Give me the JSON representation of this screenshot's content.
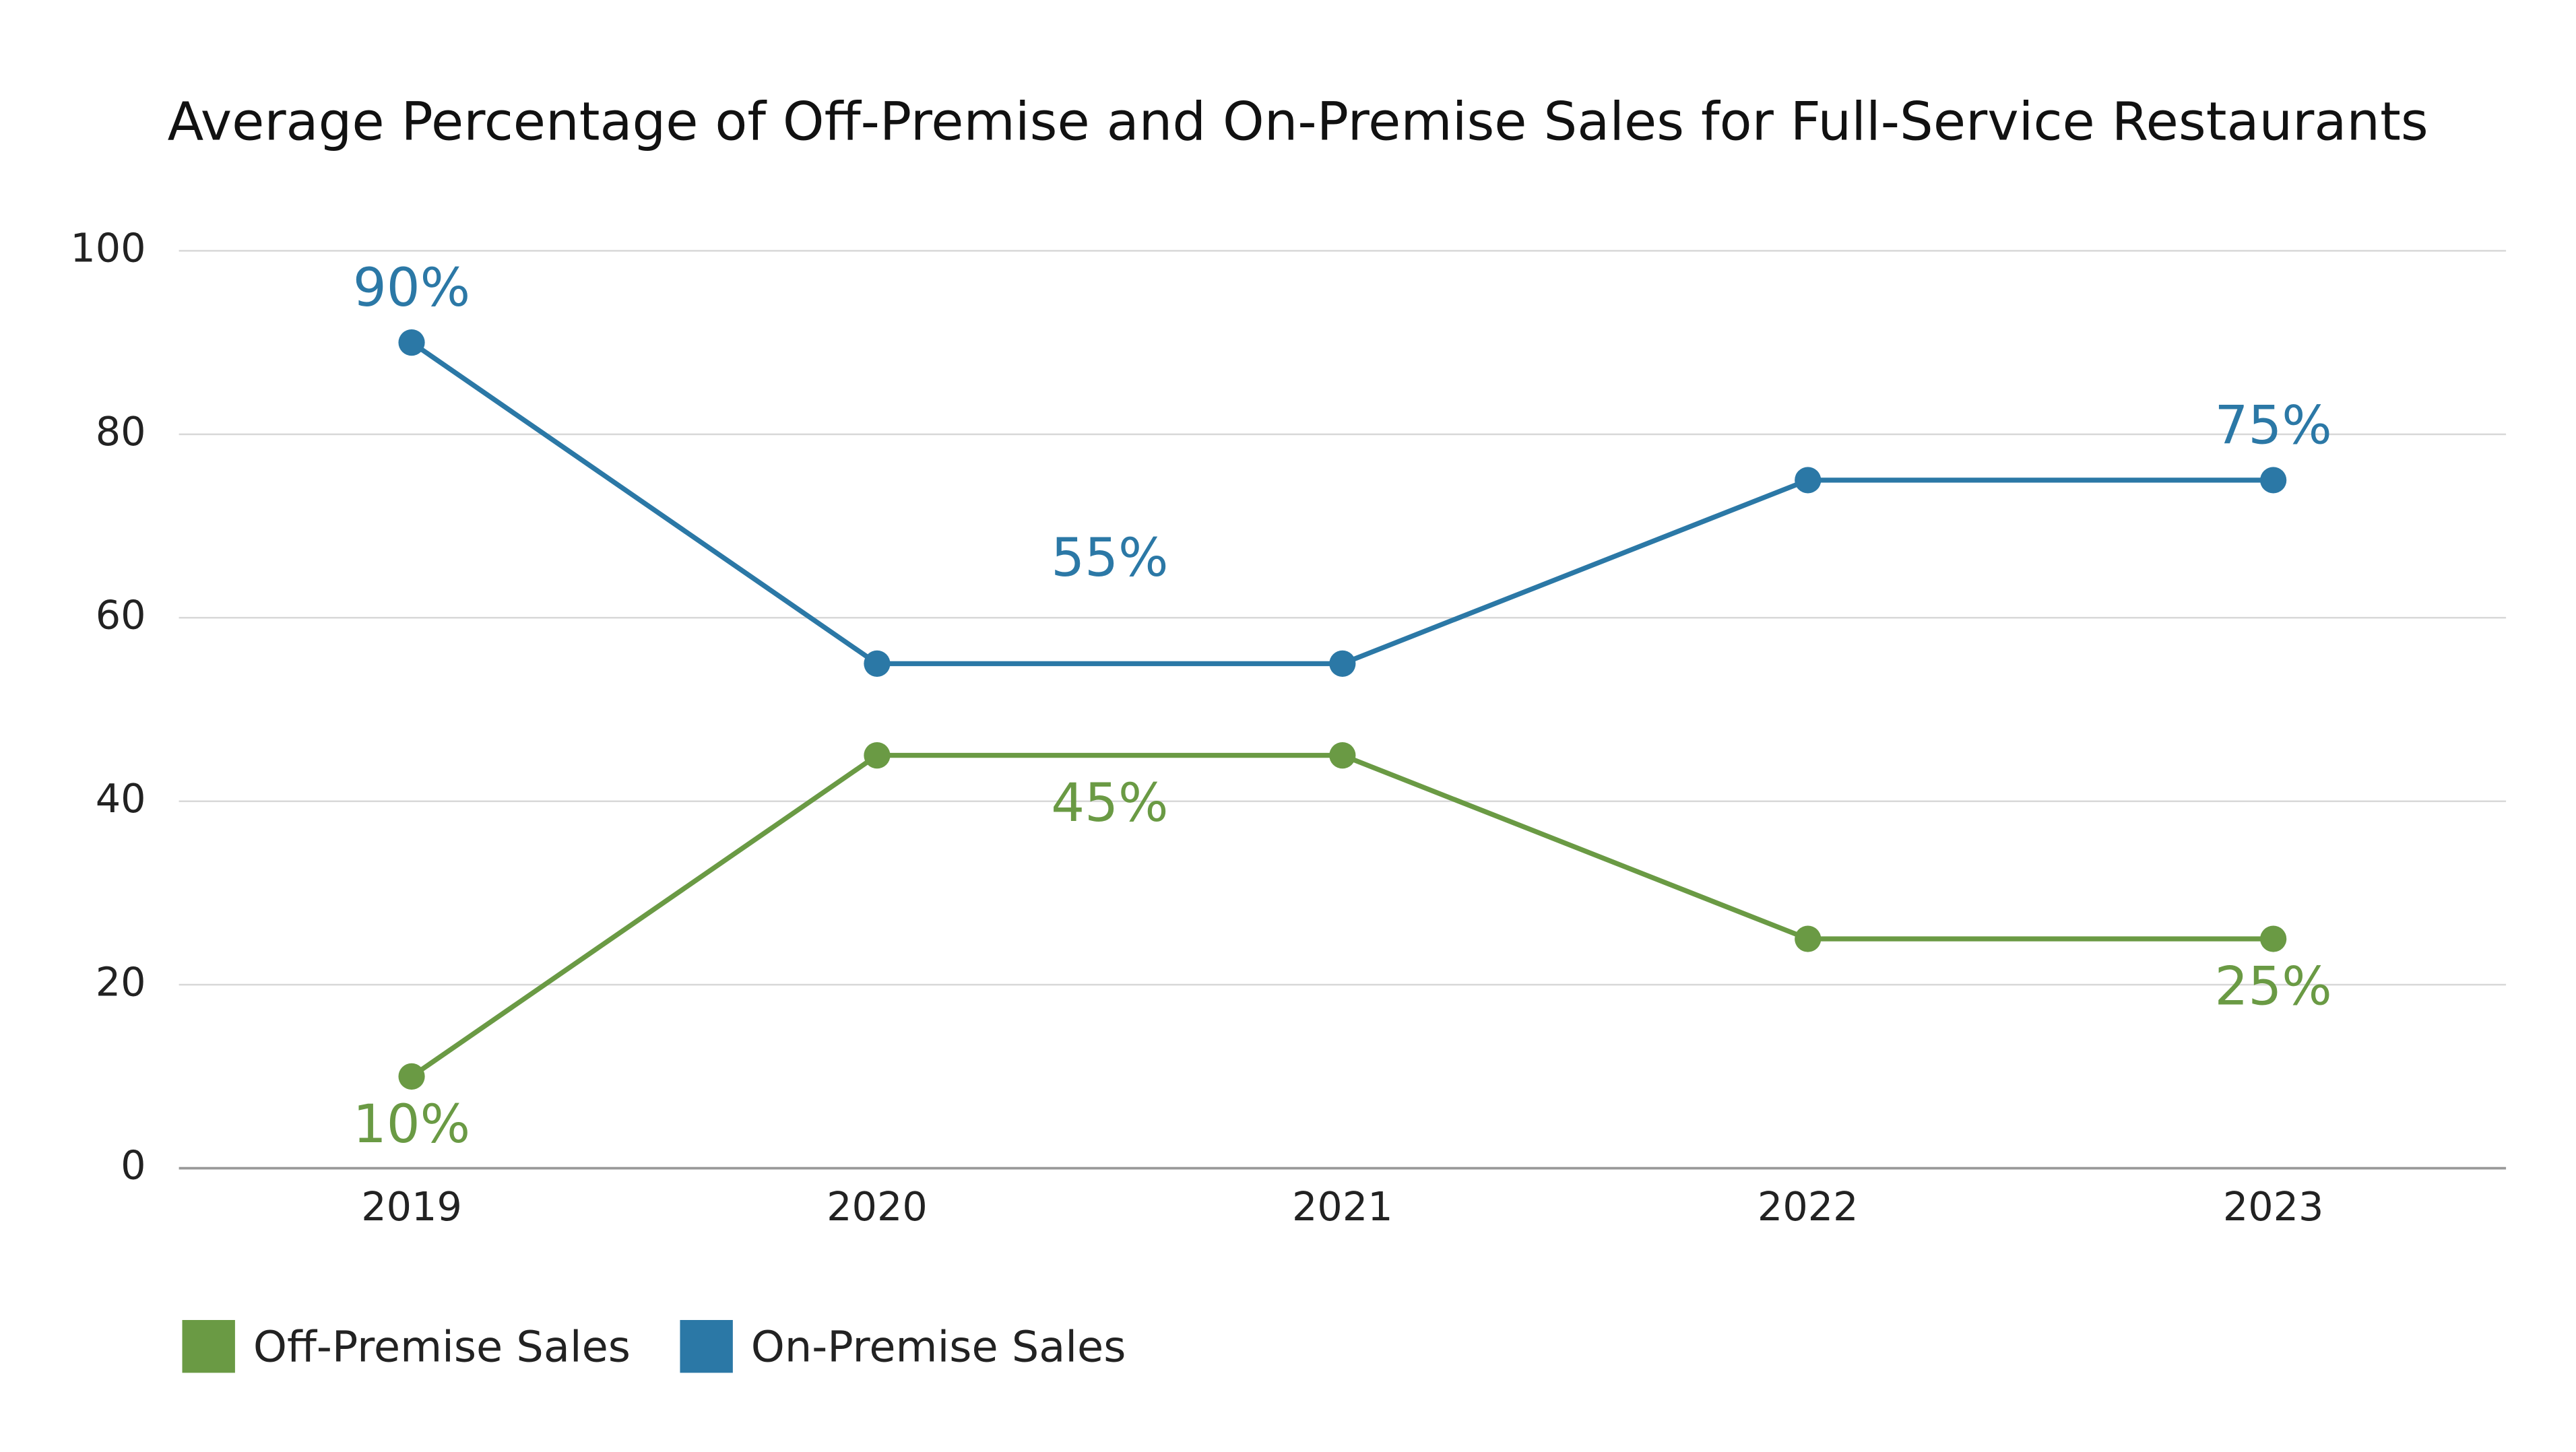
{
  "chart_data": {
    "type": "line",
    "title": "Average Percentage of Off-Premise and On-Premise Sales for Full-Service Restaurants",
    "categories": [
      "2019",
      "2020",
      "2021",
      "2022",
      "2023"
    ],
    "series": [
      {
        "name": "Off-Premise Sales",
        "color": "#6a9a44",
        "values": [
          10,
          45,
          45,
          25,
          25
        ],
        "value_labels": [
          "10%",
          "45%",
          null,
          null,
          "25%"
        ]
      },
      {
        "name": "On-Premise Sales",
        "color": "#2b78a6",
        "values": [
          90,
          55,
          55,
          75,
          75
        ],
        "value_labels": [
          "90%",
          "55%",
          null,
          null,
          "75%"
        ]
      }
    ],
    "ylim": [
      0,
      100
    ],
    "yticks": [
      0,
      20,
      40,
      60,
      80,
      100
    ],
    "grid": true,
    "legend": "bottom-left"
  }
}
